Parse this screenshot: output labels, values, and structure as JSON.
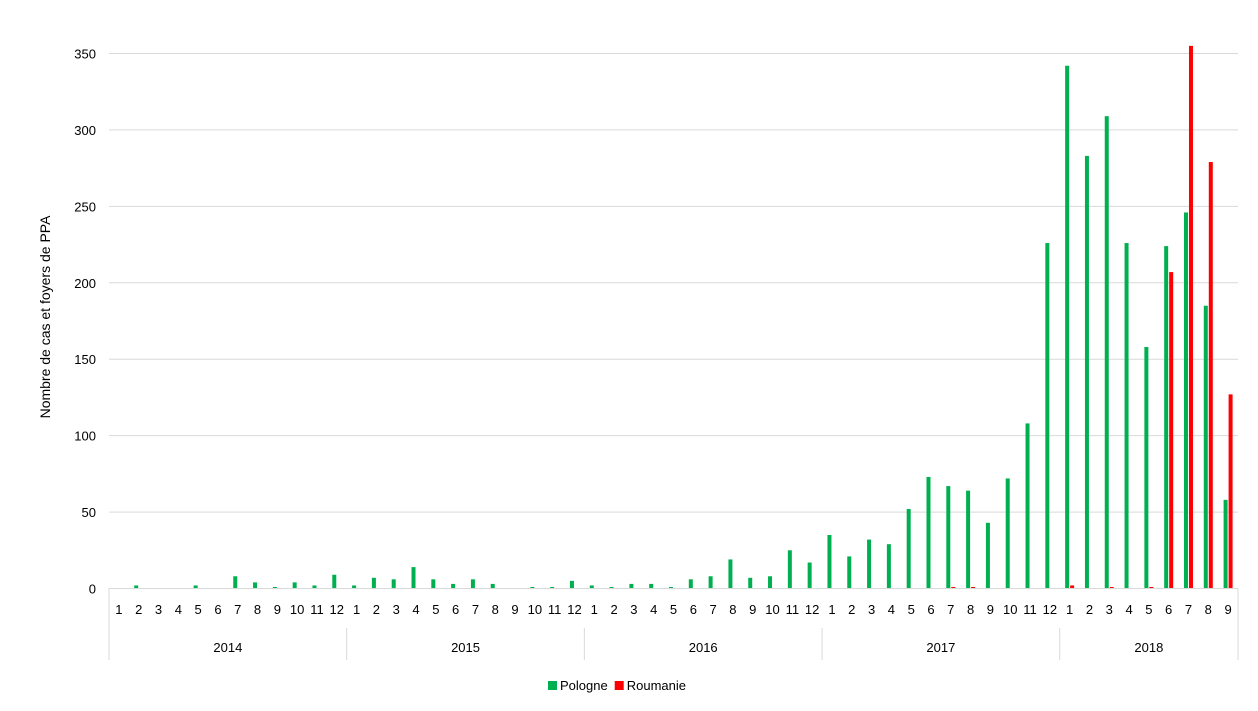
{
  "chart_data": {
    "type": "bar",
    "ylabel": "Nombre de cas et foyers de PPA",
    "ylim": [
      0,
      350
    ],
    "yticks": [
      0,
      50,
      100,
      150,
      200,
      250,
      300,
      350
    ],
    "grid": true,
    "legend_position": "bottom",
    "years": [
      {
        "label": "2014",
        "months": [
          "1",
          "2",
          "3",
          "4",
          "5",
          "6",
          "7",
          "8",
          "9",
          "10",
          "11",
          "12"
        ]
      },
      {
        "label": "2015",
        "months": [
          "1",
          "2",
          "3",
          "4",
          "5",
          "6",
          "7",
          "8",
          "9",
          "10",
          "11",
          "12"
        ]
      },
      {
        "label": "2016",
        "months": [
          "1",
          "2",
          "3",
          "4",
          "5",
          "6",
          "7",
          "8",
          "9",
          "10",
          "11",
          "12"
        ]
      },
      {
        "label": "2017",
        "months": [
          "1",
          "2",
          "3",
          "4",
          "5",
          "6",
          "7",
          "8",
          "9",
          "10",
          "11",
          "12"
        ]
      },
      {
        "label": "2018",
        "months": [
          "1",
          "2",
          "3",
          "4",
          "5",
          "6",
          "7",
          "8",
          "9"
        ]
      }
    ],
    "series": [
      {
        "name": "Pologne",
        "color": "#00b050",
        "values": [
          0,
          2,
          0,
          0,
          2,
          0,
          8,
          4,
          1,
          4,
          2,
          9,
          2,
          7,
          6,
          14,
          6,
          3,
          6,
          3,
          0,
          1,
          1,
          5,
          2,
          1,
          3,
          3,
          1,
          6,
          8,
          19,
          7,
          8,
          25,
          17,
          35,
          21,
          32,
          29,
          52,
          73,
          67,
          64,
          43,
          72,
          108,
          226,
          342,
          283,
          309,
          226,
          158,
          224,
          246,
          185,
          58
        ]
      },
      {
        "name": "Roumanie",
        "color": "#ff0000",
        "values": [
          0,
          0,
          0,
          0,
          0,
          0,
          0,
          0,
          0,
          0,
          0,
          0,
          0,
          0,
          0,
          0,
          0,
          0,
          0,
          0,
          0,
          0,
          0,
          0,
          0,
          0,
          0,
          0,
          0,
          0,
          0,
          0,
          0,
          0,
          0,
          0,
          0,
          0,
          0,
          0,
          0,
          0,
          1,
          1,
          0,
          0,
          0,
          0,
          2,
          0,
          1,
          0,
          1,
          207,
          355,
          279,
          127
        ]
      }
    ]
  }
}
